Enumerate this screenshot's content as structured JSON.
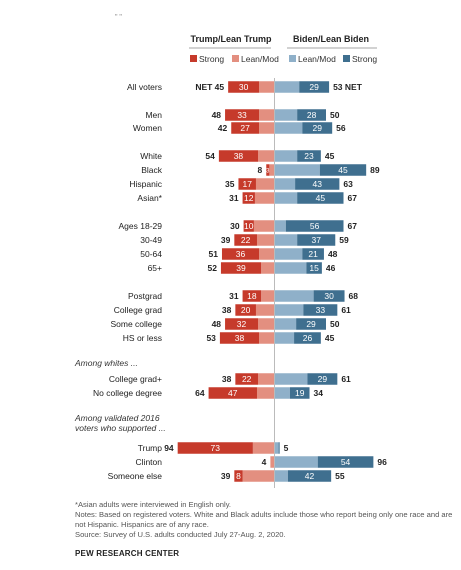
{
  "header_marks": "\" \"",
  "chart_data": {
    "type": "bar",
    "orientation": "horizontal-diverging",
    "column_headers": {
      "left": "Trump/Lean Trump",
      "right": "Biden/Lean Biden"
    },
    "legend": [
      "Strong",
      "Lean/Mod",
      "Lean/Mod",
      "Strong"
    ],
    "colors": {
      "trump_strong": "#c63a2b",
      "trump_lean": "#e38f80",
      "biden_lean": "#8fb0c9",
      "biden_strong": "#3f6f8f"
    },
    "rows": [
      {
        "label": "All voters",
        "trump_strong": 30,
        "trump_lean": 15,
        "trump_net": "NET 45",
        "biden_lean": 24,
        "biden_strong": 29,
        "biden_net": "53 NET",
        "bold": true
      },
      {
        "label": "Men",
        "trump_strong": 33,
        "trump_lean": 15,
        "trump_net": "48",
        "biden_lean": 22,
        "biden_strong": 28,
        "biden_net": "50"
      },
      {
        "label": "Women",
        "trump_strong": 27,
        "trump_lean": 15,
        "trump_net": "42",
        "biden_lean": 27,
        "biden_strong": 29,
        "biden_net": "56"
      },
      {
        "label": "White",
        "trump_strong": 38,
        "trump_lean": 16,
        "trump_net": "54",
        "biden_lean": 22,
        "biden_strong": 23,
        "biden_net": "45"
      },
      {
        "label": "Black",
        "trump_strong": 3,
        "trump_lean": 5,
        "trump_net": "8",
        "biden_lean": 44,
        "biden_strong": 45,
        "biden_net": "89"
      },
      {
        "label": "Hispanic",
        "trump_strong": 17,
        "trump_lean": 18,
        "trump_net": "35",
        "biden_lean": 20,
        "biden_strong": 43,
        "biden_net": "63"
      },
      {
        "label": "Asian*",
        "trump_strong": 12,
        "trump_lean": 19,
        "trump_net": "31",
        "biden_lean": 22,
        "biden_strong": 45,
        "biden_net": "67"
      },
      {
        "label": "Ages 18-29",
        "trump_strong": 10,
        "trump_lean": 20,
        "trump_net": "30",
        "biden_lean": 11,
        "biden_strong": 56,
        "biden_net": "67"
      },
      {
        "label": "30-49",
        "trump_strong": 22,
        "trump_lean": 17,
        "trump_net": "39",
        "biden_lean": 22,
        "biden_strong": 37,
        "biden_net": "59"
      },
      {
        "label": "50-64",
        "trump_strong": 36,
        "trump_lean": 15,
        "trump_net": "51",
        "biden_lean": 27,
        "biden_strong": 21,
        "biden_net": "48"
      },
      {
        "label": "65+",
        "trump_strong": 39,
        "trump_lean": 13,
        "trump_net": "52",
        "biden_lean": 31,
        "biden_strong": 15,
        "biden_net": "46"
      },
      {
        "label": "Postgrad",
        "trump_strong": 18,
        "trump_lean": 13,
        "trump_net": "31",
        "biden_lean": 38,
        "biden_strong": 30,
        "biden_net": "68"
      },
      {
        "label": "College grad",
        "trump_strong": 20,
        "trump_lean": 18,
        "trump_net": "38",
        "biden_lean": 28,
        "biden_strong": 33,
        "biden_net": "61"
      },
      {
        "label": "Some college",
        "trump_strong": 32,
        "trump_lean": 16,
        "trump_net": "48",
        "biden_lean": 21,
        "biden_strong": 29,
        "biden_net": "50"
      },
      {
        "label": "HS or less",
        "trump_strong": 38,
        "trump_lean": 15,
        "trump_net": "53",
        "biden_lean": 19,
        "biden_strong": 26,
        "biden_net": "45"
      },
      {
        "label": "College grad+",
        "trump_strong": 22,
        "trump_lean": 16,
        "trump_net": "38",
        "biden_lean": 32,
        "biden_strong": 29,
        "biden_net": "61"
      },
      {
        "label": "No college degree",
        "trump_strong": 47,
        "trump_lean": 17,
        "trump_net": "64",
        "biden_lean": 15,
        "biden_strong": 19,
        "biden_net": "34"
      },
      {
        "label": "Trump",
        "trump_strong": 73,
        "trump_lean": 21,
        "trump_net": "94",
        "biden_lean": 4,
        "biden_strong": 1,
        "biden_net": "5"
      },
      {
        "label": "Clinton",
        "trump_strong": 0,
        "trump_lean": 4,
        "trump_net": "4",
        "biden_lean": 42,
        "biden_strong": 54,
        "biden_net": "96"
      },
      {
        "label": "Someone else",
        "trump_strong": 8,
        "trump_lean": 31,
        "trump_net": "39",
        "biden_lean": 13,
        "biden_strong": 42,
        "biden_net": "55"
      }
    ],
    "section_labels": [
      "Among whites ...",
      "Among validated 2016\nvoters who supported ..."
    ]
  },
  "notes": {
    "asterisk": "*Asian adults were interviewed in English only.",
    "notes": "Notes: Based on registered voters. White and Black adults include those who report being only one race and are not Hispanic. Hispanics are of any race.",
    "source": "Source: Survey of U.S. adults conducted July 27-Aug. 2, 2020."
  },
  "source_label": "PEW RESEARCH CENTER"
}
